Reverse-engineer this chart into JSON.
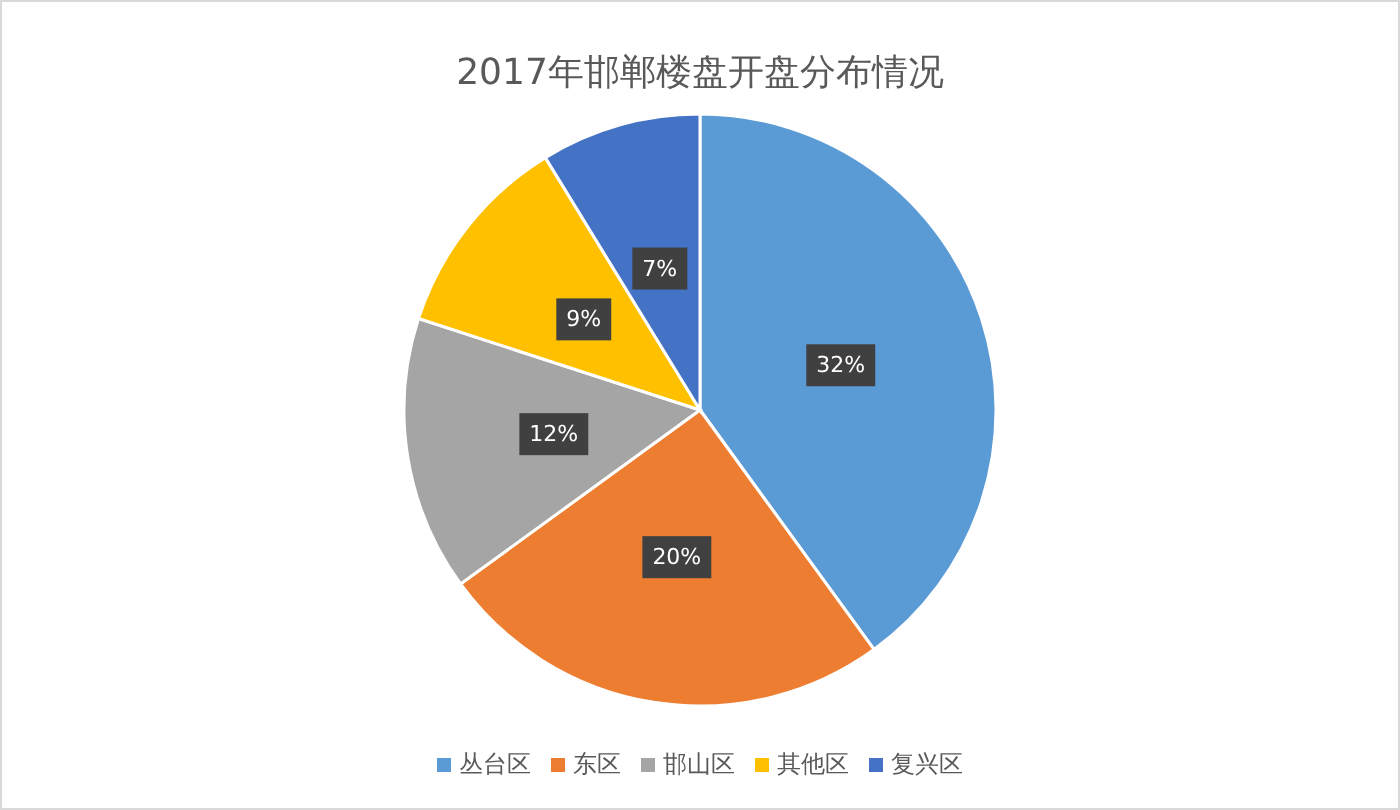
{
  "chart_data": {
    "type": "pie",
    "title": "2017年邯郸楼盘开盘分布情况",
    "categories": [
      "丛台区",
      "东区",
      "邯山区",
      "其他区",
      "复兴区"
    ],
    "values": [
      32,
      20,
      12,
      9,
      7
    ],
    "value_labels": [
      "32%",
      "20%",
      "12%",
      "9%",
      "7%"
    ],
    "colors": [
      "#5b9bd5",
      "#ed7d31",
      "#a5a5a5",
      "#ffc000",
      "#4472c4"
    ],
    "legend": "bottom"
  }
}
